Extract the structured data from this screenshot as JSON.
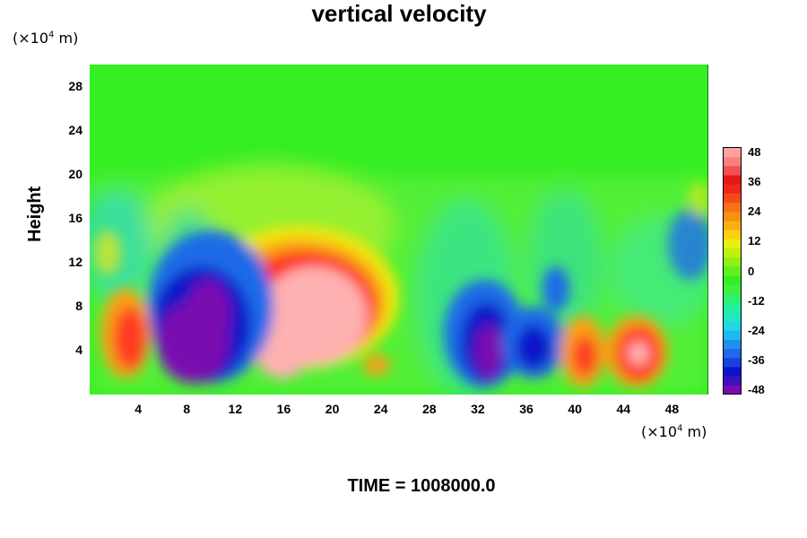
{
  "chart_data": {
    "type": "heatmap",
    "title": "vertical velocity",
    "ylabel": "Height",
    "y_unit": {
      "prefix": "(×10",
      "exp": "4",
      "suffix": " m)"
    },
    "x_unit": {
      "prefix": "(×10",
      "exp": "4",
      "suffix": " m)"
    },
    "x_ticks": [
      "4",
      "8",
      "12",
      "16",
      "20",
      "24",
      "28",
      "32",
      "36",
      "40",
      "44",
      "48"
    ],
    "y_ticks": [
      "28",
      "24",
      "20",
      "16",
      "12",
      "8",
      "4"
    ],
    "xlim": [
      0,
      51
    ],
    "ylim": [
      0,
      30
    ],
    "colorbar": {
      "ticks": [
        "48",
        "36",
        "24",
        "12",
        "0",
        "-12",
        "-24",
        "-36",
        "-48"
      ],
      "range": [
        -48,
        48
      ]
    },
    "features": [
      {
        "x": 8,
        "y": 5,
        "value": -48
      },
      {
        "x": 9.5,
        "y": 8,
        "value": -36
      },
      {
        "x": 18,
        "y": 7,
        "value": 48
      },
      {
        "x": 15.5,
        "y": 3,
        "value": 48
      },
      {
        "x": 17,
        "y": 8,
        "value": 36
      },
      {
        "x": 3,
        "y": 6,
        "value": 30
      },
      {
        "x": 33,
        "y": 4,
        "value": -48
      },
      {
        "x": 32,
        "y": 8,
        "value": -30
      },
      {
        "x": 37,
        "y": 4,
        "value": -36
      },
      {
        "x": 40.5,
        "y": 4,
        "value": 26
      },
      {
        "x": 45.5,
        "y": 4,
        "value": 48
      },
      {
        "x": 24,
        "y": 3,
        "value": 24
      },
      {
        "x": 48.5,
        "y": 15,
        "value": -24
      }
    ],
    "footer": "TIME = 1008000.0"
  }
}
